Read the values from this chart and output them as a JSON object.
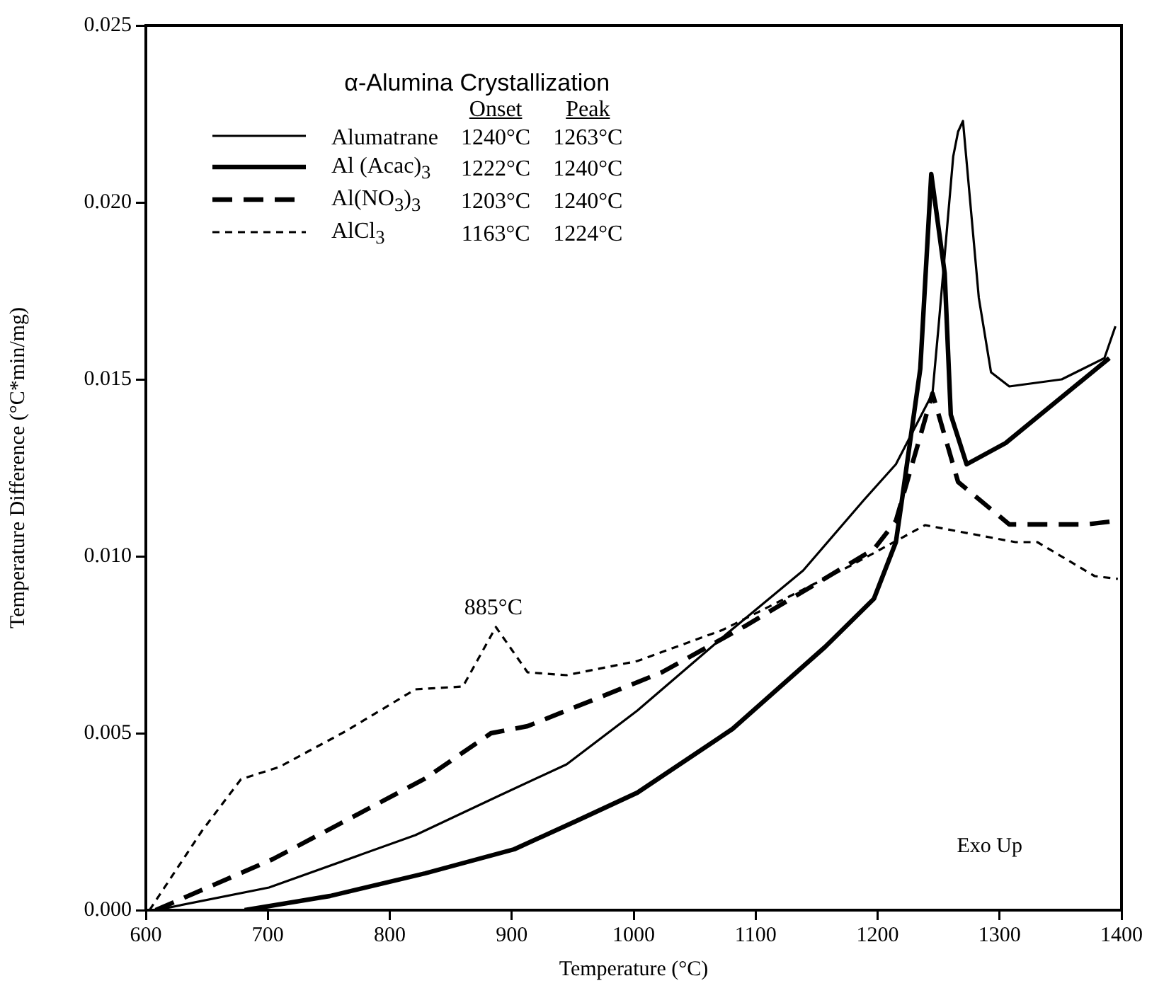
{
  "chart_data": {
    "type": "line",
    "xlabel": "Temperature (°C)",
    "ylabel": "Temperature Difference (°C*min/mg)",
    "legend_title": "α-Alumina Crystallization",
    "legend": "top left",
    "xlim": [
      600,
      1400
    ],
    "xticks": [
      600,
      700,
      800,
      900,
      1000,
      1100,
      1200,
      1300,
      1400
    ],
    "ylim": [
      0,
      0.025
    ],
    "yticks": [
      {
        "value": 0,
        "label": "0.000"
      },
      {
        "value": 0.005,
        "label": "0.005"
      },
      {
        "value": 0.01,
        "label": "0.010"
      },
      {
        "value": 0.015,
        "label": "0.015"
      },
      {
        "value": 0.02,
        "label": "0.020"
      },
      {
        "value": 0.025,
        "label": "0.025"
      }
    ],
    "grid": false,
    "marker": "none",
    "series": [
      {
        "name": "Alumatrane",
        "color": "#000000",
        "line_style": "solid",
        "x": [
          608,
          701,
          821,
          890,
          945,
          1003,
          1076,
          1139,
          1189,
          1215,
          1227,
          1245,
          1250,
          1262,
          1266,
          1270,
          1283,
          1293,
          1308,
          1351,
          1386,
          1395
        ],
        "values": [
          0,
          0.00064,
          0.00212,
          0.00324,
          0.00412,
          0.00564,
          0.0078,
          0.0096,
          0.0116,
          0.0126,
          0.0134,
          0.0146,
          0.0165,
          0.0213,
          0.022,
          0.0223,
          0.0173,
          0.0152,
          0.0148,
          0.015,
          0.0156,
          0.0165
        ]
      },
      {
        "name": "Al (Acac)$_{3}$",
        "color": "#000000",
        "line_style": "solid",
        "x": [
          681,
          751,
          829,
          902,
          953,
          1003,
          1081,
          1157,
          1197,
          1215,
          1220,
          1235,
          1244,
          1255,
          1260,
          1273,
          1305,
          1390
        ],
        "values": [
          0,
          0.0004,
          0.00104,
          0.00172,
          0.00252,
          0.00332,
          0.00512,
          0.00744,
          0.0088,
          0.0104,
          0.0116,
          0.0153,
          0.0208,
          0.018,
          0.014,
          0.0126,
          0.0132,
          0.0156
        ]
      },
      {
        "name": "Al(NO$_{3}$)$_{3}$",
        "color": "#000000",
        "line_style": "dashed",
        "x": [
          608,
          704,
          759,
          829,
          883,
          913,
          1003,
          1023,
          1092,
          1197,
          1215,
          1245,
          1266,
          1308,
          1371,
          1396
        ],
        "values": [
          0,
          0.00144,
          0.00244,
          0.00372,
          0.005,
          0.0052,
          0.00644,
          0.00672,
          0.00804,
          0.0102,
          0.011,
          0.0146,
          0.0121,
          0.0109,
          0.0109,
          0.011
        ]
      },
      {
        "name": "AlCl$_{3}$",
        "color": "#000000",
        "line_style": "dotted",
        "x": [
          603,
          646,
          678,
          709,
          763,
          821,
          860,
          887,
          913,
          945,
          1003,
          1073,
          1177,
          1239,
          1313,
          1331,
          1378,
          1397
        ],
        "values": [
          0,
          0.00224,
          0.0037,
          0.00404,
          0.00504,
          0.00624,
          0.00632,
          0.008,
          0.00672,
          0.00664,
          0.00704,
          0.00792,
          0.00972,
          0.01088,
          0.0104,
          0.0104,
          0.00944,
          0.00936
        ]
      }
    ],
    "annotations": [
      "Onset",
      "Peak",
      "1240°C",
      "1263°C",
      "1222°C",
      "1240°C",
      "1203°C",
      "1240°C",
      "1163°C",
      "1224°C",
      {
        "text": "885°C",
        "x": 885,
        "y": 0.008
      },
      "Exo Up"
    ]
  }
}
